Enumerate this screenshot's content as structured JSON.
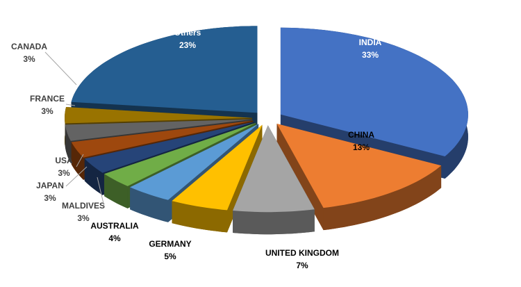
{
  "chart_data": {
    "type": "pie3d",
    "categories": [
      "INDIA",
      "CHINA",
      "UNITED KINGDOM",
      "GERMANY",
      "AUSTRALIA",
      "MALDIVES",
      "JAPAN",
      "USA",
      "FRANCE",
      "CANADA",
      "Others"
    ],
    "values": [
      33,
      13,
      7,
      5,
      4,
      3,
      3,
      3,
      3,
      3,
      23
    ],
    "value_labels": [
      "33%",
      "13%",
      "7%",
      "5%",
      "4%",
      "3%",
      "3%",
      "3%",
      "3%",
      "3%",
      "23%"
    ],
    "colors": [
      "#4472c4",
      "#ed7d31",
      "#a5a5a5",
      "#ffc000",
      "#5b9bd5",
      "#70ad47",
      "#264478",
      "#9e480e",
      "#636363",
      "#997300",
      "#255e91"
    ]
  }
}
